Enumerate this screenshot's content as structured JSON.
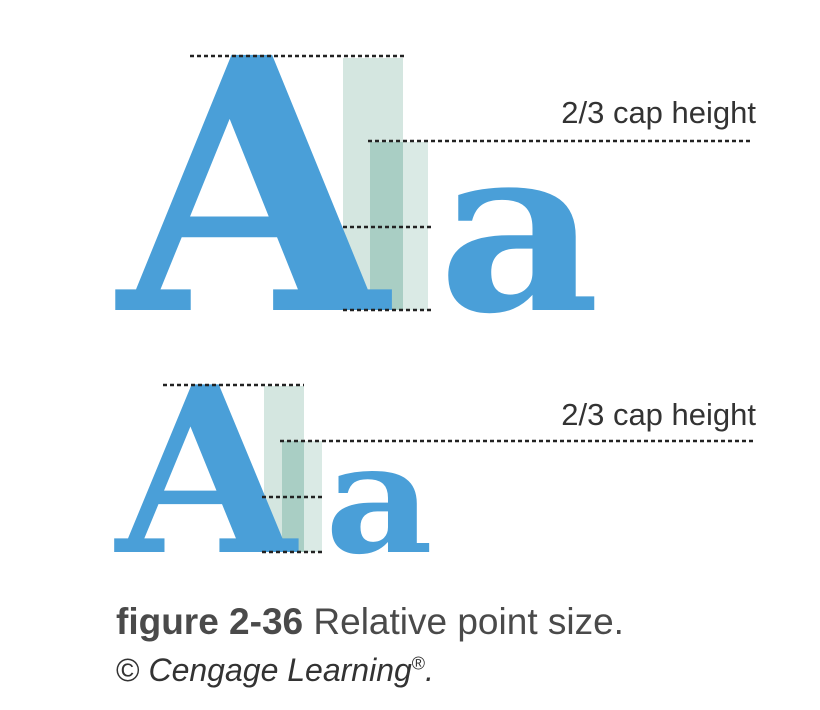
{
  "colors": {
    "glyph": "#4a9fd8",
    "guide_band_light": "#d4e6e0",
    "guide_band_dark": "#a9cec4",
    "dotted_line": "#222222",
    "label": "#333333"
  },
  "large_specimen": {
    "cap_letter": "A",
    "lower_letter": "a",
    "guide_label": "2/3 cap height"
  },
  "small_specimen": {
    "cap_letter": "A",
    "lower_letter": "a",
    "guide_label": "2/3 cap height"
  },
  "caption": {
    "figure_number": "figure 2-36",
    "title": "Relative point size.",
    "copyright_symbol": "©",
    "credit": "Cengage Learning",
    "registered_mark": "®",
    "credit_end": "."
  }
}
